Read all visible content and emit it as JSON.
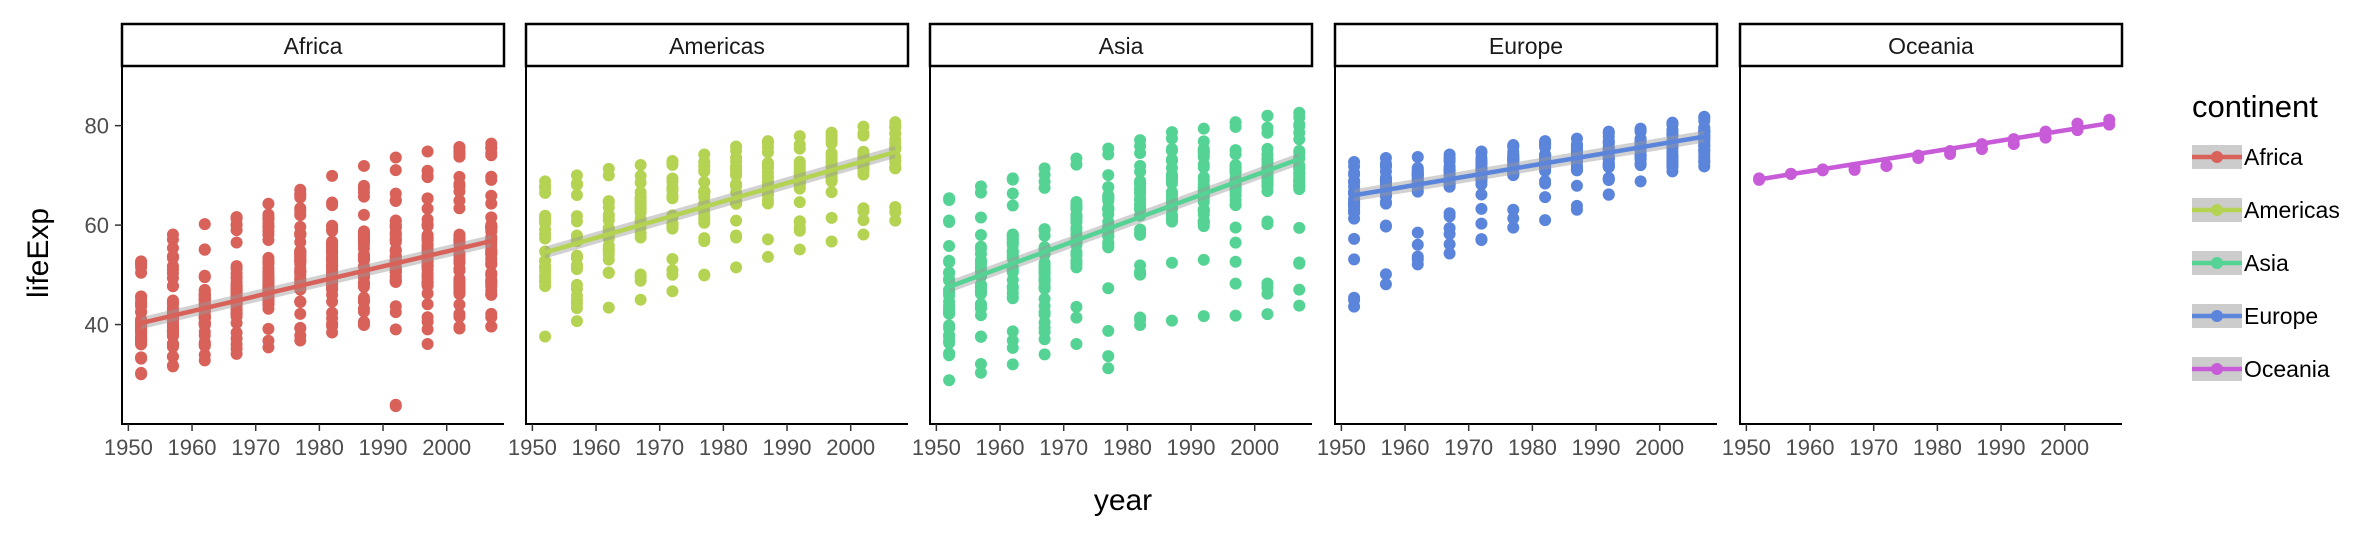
{
  "chart_data": {
    "type": "scatter",
    "facet_by": "continent",
    "xlabel": "year",
    "ylabel": "lifeExp",
    "xlim": [
      1949,
      2009
    ],
    "ylim": [
      20,
      92
    ],
    "x_ticks": [
      1950,
      1960,
      1970,
      1980,
      1990,
      2000
    ],
    "y_ticks": [
      40,
      60,
      80
    ],
    "grid": false,
    "legend": {
      "title": "continent",
      "placement": "right",
      "items": [
        "Africa",
        "Americas",
        "Asia",
        "Europe",
        "Oceania"
      ]
    },
    "years": [
      1952,
      1957,
      1962,
      1967,
      1972,
      1977,
      1982,
      1987,
      1992,
      1997,
      2002,
      2007
    ],
    "facets": [
      {
        "name": "Africa",
        "color": "#d8615a",
        "n_countries": 52,
        "min": [
          30.0,
          31.6,
          32.8,
          34.1,
          35.4,
          36.8,
          38.4,
          39.9,
          23.6,
          36.1,
          39.2,
          39.6
        ],
        "q1": [
          35.8,
          37.8,
          39.8,
          41.7,
          43.5,
          45.3,
          47.0,
          48.0,
          47.8,
          47.8,
          46.9,
          47.8
        ],
        "q3": [
          42.1,
          44.8,
          47.2,
          49.9,
          53.0,
          55.6,
          57.1,
          59.4,
          60.1,
          60.5,
          58.2,
          61.6
        ],
        "max": [
          52.7,
          58.1,
          60.2,
          61.6,
          64.3,
          67.1,
          69.9,
          71.9,
          73.6,
          74.8,
          75.7,
          76.4
        ],
        "trend": [
          40.3,
          56.8
        ]
      },
      {
        "name": "Americas",
        "color": "#b5d352",
        "n_countries": 25,
        "min": [
          37.6,
          40.7,
          43.4,
          45.0,
          46.7,
          49.9,
          51.5,
          53.6,
          55.1,
          56.7,
          58.1,
          60.9
        ],
        "q1": [
          48.0,
          51.0,
          54.0,
          56.9,
          59.0,
          61.1,
          63.1,
          65.0,
          67.0,
          68.5,
          70.0,
          71.3
        ],
        "q3": [
          62.0,
          63.8,
          65.0,
          66.5,
          68.0,
          70.0,
          71.8,
          72.7,
          73.5,
          74.5,
          75.5,
          76.5
        ],
        "max": [
          68.8,
          70.0,
          71.3,
          72.1,
          72.9,
          74.2,
          75.8,
          76.9,
          77.9,
          78.6,
          79.8,
          80.7
        ],
        "trend": [
          54.5,
          74.7
        ]
      },
      {
        "name": "Asia",
        "color": "#55d394",
        "n_countries": 33,
        "min": [
          28.8,
          30.3,
          32.0,
          34.0,
          36.1,
          31.2,
          39.9,
          40.8,
          41.7,
          41.8,
          42.1,
          43.8
        ],
        "q1": [
          40.0,
          43.0,
          45.0,
          47.5,
          51.0,
          54.5,
          57.5,
          60.5,
          62.0,
          64.0,
          65.5,
          67.0
        ],
        "q3": [
          53.0,
          56.0,
          59.0,
          62.0,
          64.0,
          67.0,
          69.0,
          70.5,
          71.5,
          72.5,
          73.5,
          75.0
        ],
        "max": [
          65.4,
          67.8,
          69.4,
          71.4,
          73.4,
          75.4,
          77.1,
          78.7,
          79.4,
          80.7,
          82.0,
          82.6
        ],
        "trend": [
          47.6,
          73.3
        ]
      },
      {
        "name": "Europe",
        "color": "#5b84db",
        "n_countries": 30,
        "min": [
          43.6,
          48.1,
          52.1,
          54.3,
          57.0,
          59.5,
          61.0,
          63.1,
          66.1,
          68.8,
          70.8,
          71.8
        ],
        "q1": [
          61.0,
          64.0,
          66.5,
          68.0,
          69.0,
          70.0,
          70.8,
          71.0,
          71.5,
          72.5,
          73.5,
          74.5
        ],
        "q3": [
          69.0,
          70.0,
          71.0,
          71.5,
          72.5,
          73.5,
          74.5,
          75.5,
          76.5,
          77.5,
          78.5,
          79.5
        ],
        "max": [
          72.7,
          73.5,
          73.7,
          74.2,
          74.8,
          76.1,
          76.9,
          77.4,
          78.8,
          79.4,
          80.6,
          81.8
        ],
        "trend": [
          66.0,
          77.8
        ]
      },
      {
        "name": "Oceania",
        "color": "#c75bd8",
        "n_countries": 2,
        "min": [
          69.1,
          70.3,
          71.0,
          71.1,
          71.9,
          73.5,
          74.3,
          75.3,
          76.3,
          77.6,
          79.1,
          80.2
        ],
        "q1": [
          69.1,
          70.3,
          71.0,
          71.1,
          71.9,
          73.5,
          74.3,
          75.3,
          76.3,
          77.6,
          79.1,
          80.2
        ],
        "q3": [
          69.4,
          70.3,
          71.2,
          71.5,
          71.9,
          74.0,
          74.9,
          76.3,
          77.3,
          78.8,
          80.4,
          81.2
        ],
        "max": [
          69.4,
          70.3,
          71.2,
          71.5,
          71.9,
          74.0,
          74.9,
          76.3,
          77.3,
          78.8,
          80.4,
          81.2
        ],
        "trend": [
          69.2,
          80.5
        ]
      }
    ]
  }
}
